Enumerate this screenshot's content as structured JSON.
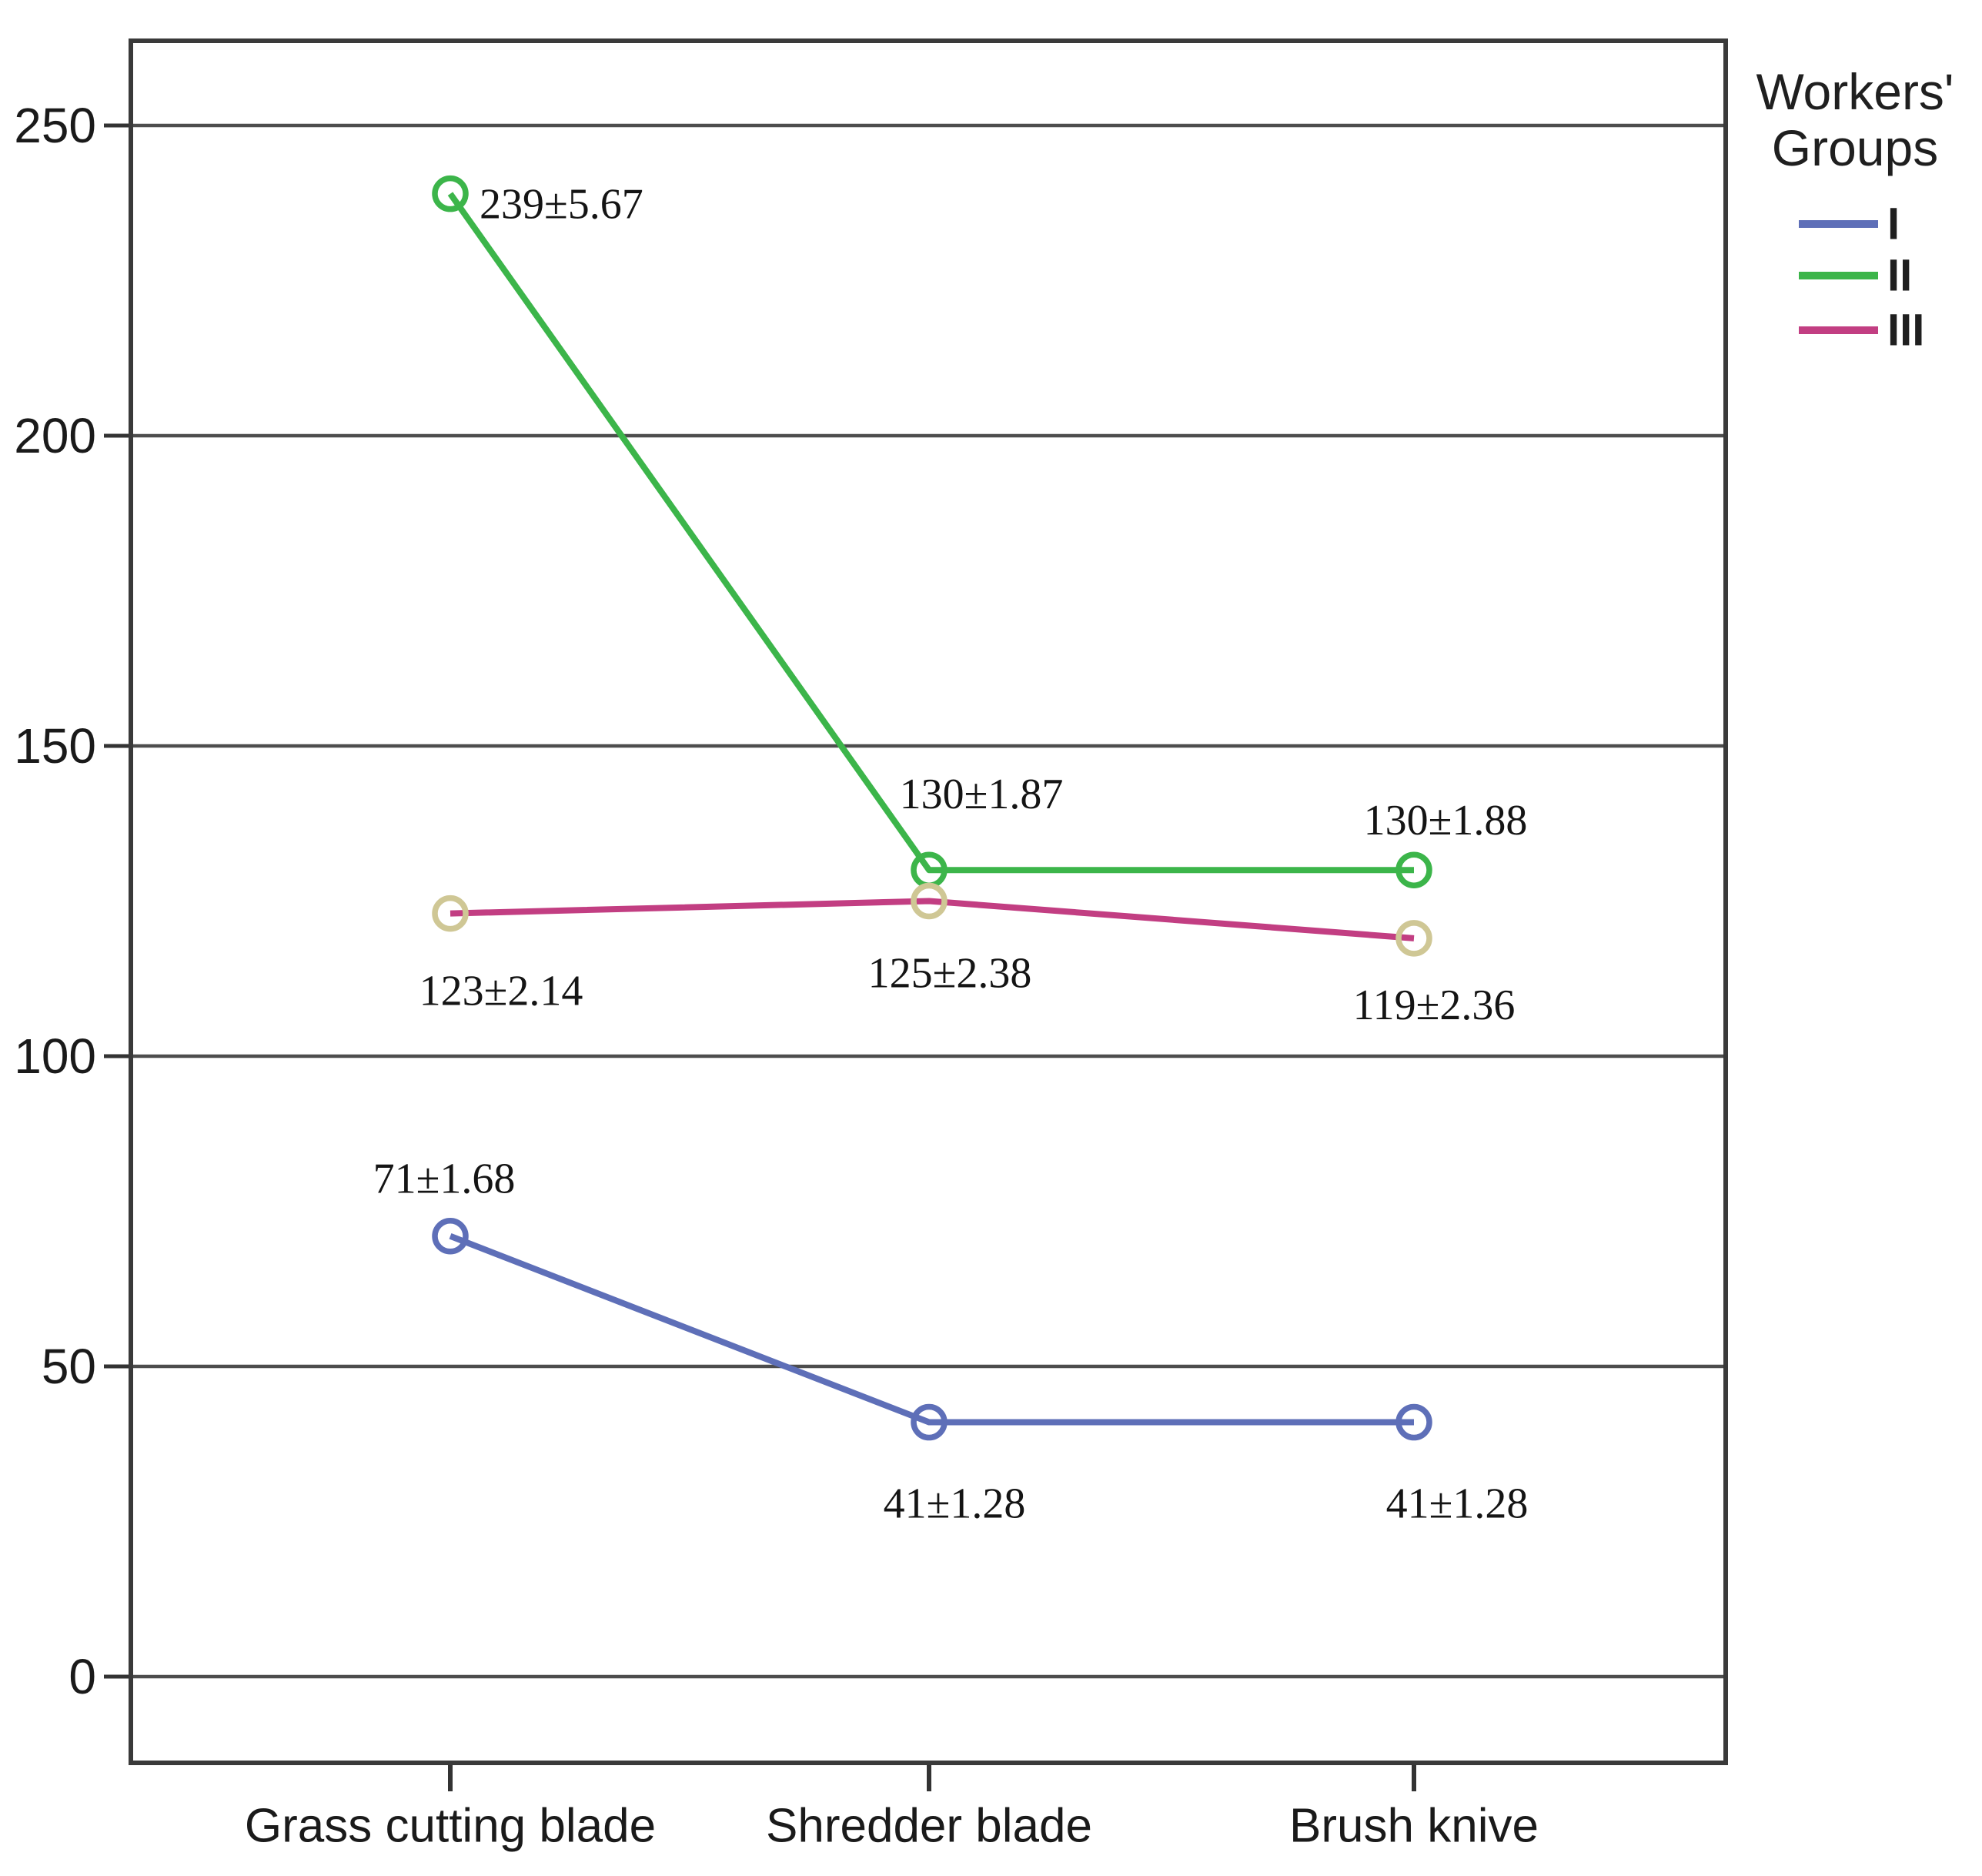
{
  "chart_data": {
    "type": "line",
    "title": "",
    "categories": [
      "Grass cutting blade",
      "Shredder blade",
      "Brush knive"
    ],
    "y_ticks": [
      "0",
      "50",
      "100",
      "150",
      "200",
      "250"
    ],
    "y_tick_values": [
      0,
      50,
      100,
      150,
      200,
      250
    ],
    "ylim": [
      -14,
      264
    ],
    "grid": true,
    "legend_title_line1": "Workers'",
    "legend_title_line2": "Groups",
    "legend_position": "top-right-outside",
    "series": [
      {
        "name": "I",
        "line_color": "#5e6fb8",
        "marker_color": "#5e6fb8",
        "values": [
          71,
          41,
          41
        ],
        "point_labels": [
          "71±1.68",
          "41±1.28",
          "41±1.28"
        ]
      },
      {
        "name": "II",
        "line_color": "#3cb54a",
        "marker_color": "#3cb54a",
        "values": [
          239,
          130,
          130
        ],
        "point_labels": [
          "239±5.67",
          "130±1.87",
          "130±1.88"
        ]
      },
      {
        "name": "III",
        "line_color": "#c23e82",
        "marker_color": "#cfc795",
        "values": [
          123,
          125,
          119
        ],
        "point_labels": [
          "123±2.14",
          "125±2.38",
          "119±2.36"
        ]
      }
    ]
  },
  "colors": {
    "background": "#ffffff",
    "frame": "#3a3a3a",
    "gridline": "#4d4d4d",
    "tick": "#333333",
    "axis_text": "#1a1a1a",
    "data_label_text": "#141414",
    "legend_text": "#1f1f1f"
  }
}
